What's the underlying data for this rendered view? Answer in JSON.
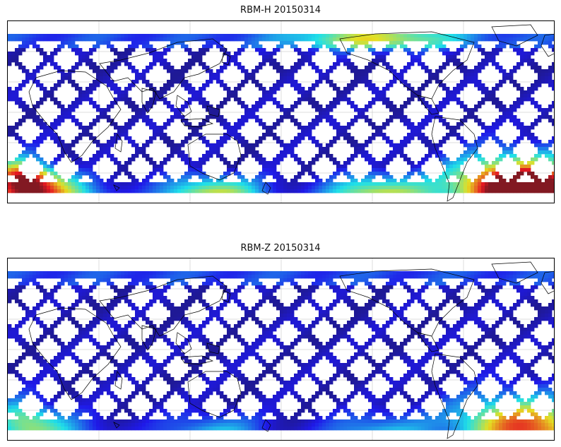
{
  "panels": [
    {
      "title": "RBM-H 20150314",
      "colormap": "jet",
      "hot_regions": [
        {
          "name": "south-atlantic-anomaly",
          "intensity": 1.0
        },
        {
          "name": "southern-high-latitude-band",
          "intensity": 0.6
        },
        {
          "name": "southwest-indian-ocean",
          "intensity": 0.85
        },
        {
          "name": "north-pacific-high-latitude",
          "intensity": 0.45
        }
      ]
    },
    {
      "title": "RBM-Z 20150314",
      "colormap": "jet",
      "hot_regions": [
        {
          "name": "south-atlantic-anomaly",
          "intensity": 0.6
        },
        {
          "name": "southern-high-latitude-band",
          "intensity": 0.3
        },
        {
          "name": "southwest-indian-ocean",
          "intensity": 0.35
        }
      ]
    }
  ],
  "colors": {
    "low": "#6a6af2",
    "mid": "#5fe3f0",
    "high": "#f4e76a",
    "very_high": "#e85a5a",
    "coastline": "#000000",
    "grid": "#bbbbbb"
  }
}
